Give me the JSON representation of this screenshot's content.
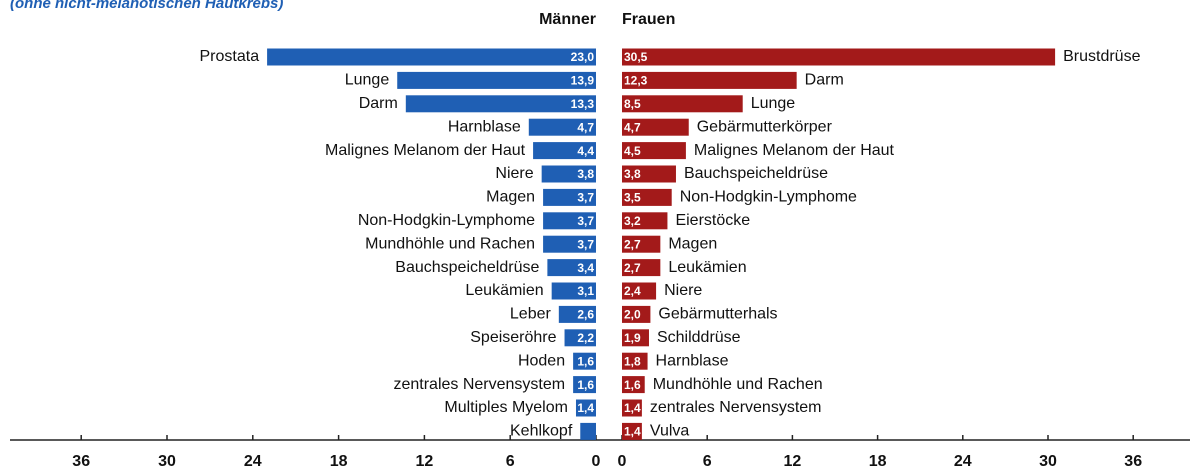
{
  "chart_data": [
    {
      "type": "bar",
      "subtitle": "(ohne nicht-melanotischen Hautkrebs)",
      "title": "Männer",
      "color": "#1f5fb4",
      "horizontal": true,
      "categories": [
        "Prostata",
        "Lunge",
        "Darm",
        "Harnblase",
        "Malignes Melanom der Haut",
        "Niere",
        "Magen",
        "Non-Hodgkin-Lymphome",
        "Mundhöhle und Rachen",
        "Bauchspeicheldrüse",
        "Leukämien",
        "Leber",
        "Speiseröhre",
        "Hoden",
        "zentrales Nervensystem",
        "Multiples Myelom",
        "Kehlkopf"
      ],
      "values": [
        23.0,
        13.9,
        13.3,
        4.7,
        4.4,
        3.8,
        3.7,
        3.7,
        3.7,
        3.4,
        3.1,
        2.6,
        2.2,
        1.6,
        1.6,
        1.4,
        1.1
      ],
      "value_labels": [
        "23,0",
        "13,9",
        "13,3",
        "4,7",
        "4,4",
        "3,8",
        "3,7",
        "3,7",
        "3,7",
        "3,4",
        "3,1",
        "2,6",
        "2,2",
        "1,6",
        "1,6",
        "1,4",
        null
      ],
      "xlim": [
        0,
        40
      ],
      "xticks": [
        0,
        6,
        12,
        18,
        24,
        30,
        36
      ]
    },
    {
      "type": "bar",
      "title": "Frauen",
      "color": "#a31a1a",
      "horizontal": true,
      "categories": [
        "Brustdrüse",
        "Darm",
        "Lunge",
        "Gebärmutterkörper",
        "Malignes Melanom der Haut",
        "Bauchspeicheldrüse",
        "Non-Hodgkin-Lymphome",
        "Eierstöcke",
        "Magen",
        "Leukämien",
        "Niere",
        "Gebärmutterhals",
        "Schilddrüse",
        "Harnblase",
        "Mundhöhle und Rachen",
        "zentrales Nervensystem",
        "Vulva"
      ],
      "values": [
        30.5,
        12.3,
        8.5,
        4.7,
        4.5,
        3.8,
        3.5,
        3.2,
        2.7,
        2.7,
        2.4,
        2.0,
        1.9,
        1.8,
        1.6,
        1.4,
        1.4
      ],
      "value_labels": [
        "30,5",
        "12,3",
        "8,5",
        "4,7",
        "4,5",
        "3,8",
        "3,5",
        "3,2",
        "2,7",
        "2,7",
        "2,4",
        "2,0",
        "1,9",
        "1,8",
        "1,6",
        "1,4",
        "1,4"
      ],
      "xlim": [
        0,
        40
      ],
      "xticks": [
        0,
        6,
        12,
        18,
        24,
        30,
        36
      ]
    }
  ]
}
